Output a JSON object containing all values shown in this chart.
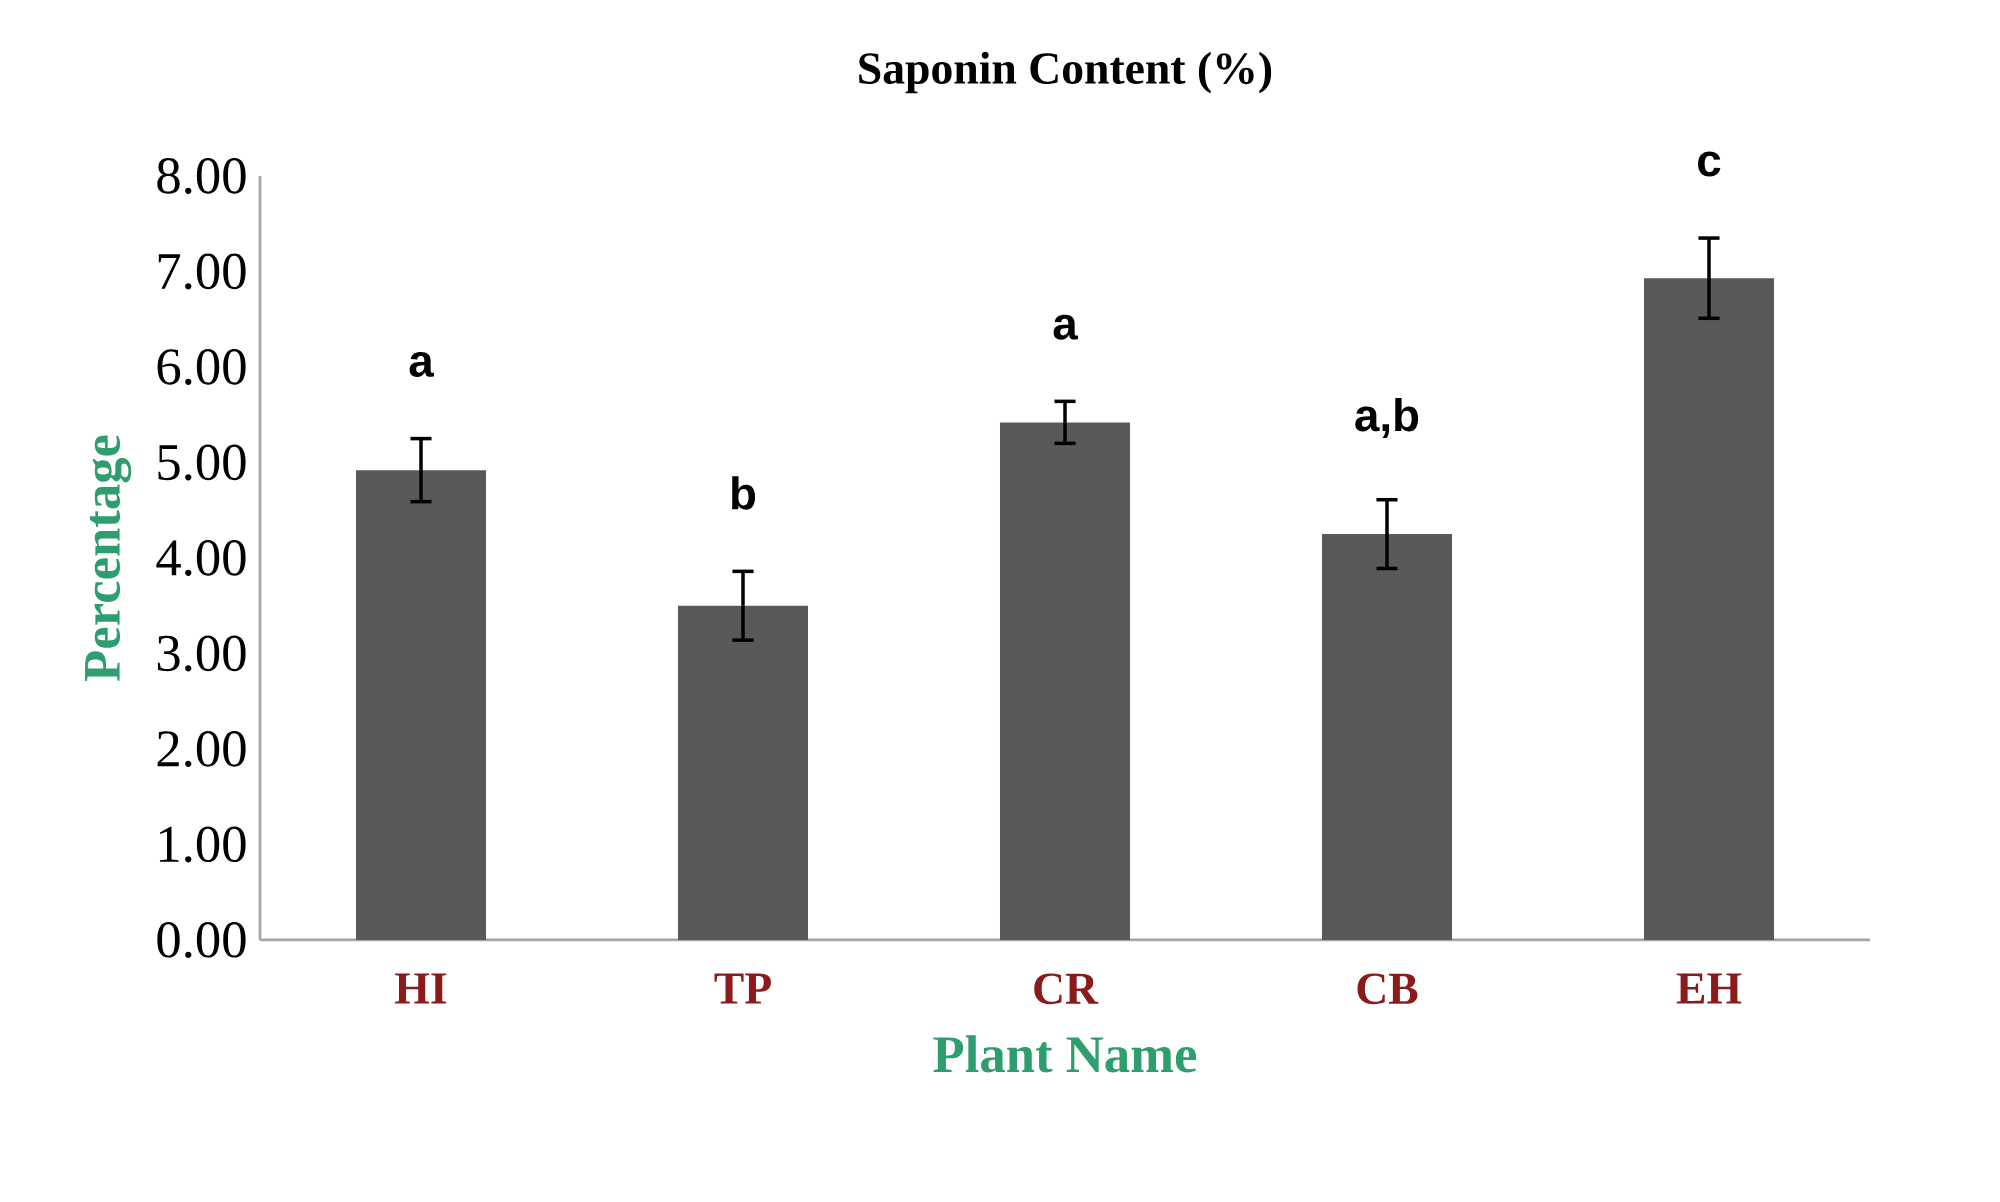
{
  "chart_data": {
    "type": "bar",
    "title": "Saponin Content (%)",
    "xlabel": "Plant Name",
    "ylabel": "Percentage",
    "categories": [
      "HI",
      "TP",
      "CR",
      "CB",
      "EH"
    ],
    "values": [
      4.92,
      3.5,
      5.42,
      4.25,
      6.93
    ],
    "errors": [
      0.33,
      0.36,
      0.22,
      0.36,
      0.42
    ],
    "color": "#595959",
    "ylim": [
      0,
      8
    ],
    "yticks": [
      {
        "value": 0,
        "label": "0.00"
      },
      {
        "value": 1,
        "label": "1.00"
      },
      {
        "value": 2,
        "label": "2.00"
      },
      {
        "value": 3,
        "label": "3.00"
      },
      {
        "value": 4,
        "label": "4.00"
      },
      {
        "value": 5,
        "label": "5.00"
      },
      {
        "value": 6,
        "label": "6.00"
      },
      {
        "value": 7,
        "label": "7.00"
      },
      {
        "value": 8,
        "label": "8.00"
      }
    ],
    "annotations": [
      "a",
      "b",
      "a",
      "a,b",
      "c"
    ]
  }
}
